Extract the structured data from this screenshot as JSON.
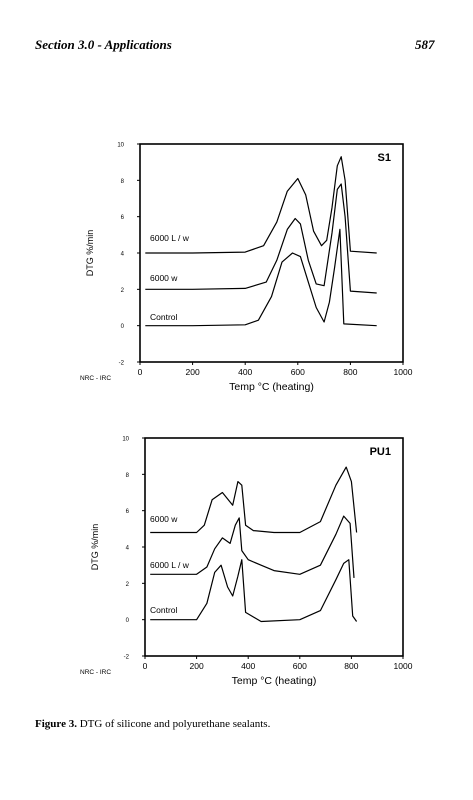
{
  "page": {
    "header_section": "Section 3.0 - Applications",
    "page_number": "587",
    "caption_label": "Figure 3.",
    "caption_text": "DTG of silicone and polyurethane sealants."
  },
  "chart_data": [
    {
      "type": "line",
      "title": "S1",
      "xlabel": "Temp °C  (heating)",
      "ylabel": "DTG   %/min",
      "source_label": "NRC - IRC",
      "xlim": [
        0,
        1000
      ],
      "ylim": [
        -2,
        10
      ],
      "xticks": [
        0,
        200,
        400,
        600,
        800,
        1000
      ],
      "yticks": [
        -2,
        0,
        2,
        4,
        6,
        8,
        10
      ],
      "series": [
        {
          "name": "6000 L / w",
          "x": [
            20,
            200,
            400,
            470,
            520,
            560,
            600,
            630,
            660,
            690,
            710,
            730,
            750,
            765,
            780,
            800,
            900
          ],
          "y": [
            4.0,
            4.0,
            4.05,
            4.4,
            5.7,
            7.4,
            8.1,
            7.2,
            5.2,
            4.4,
            4.7,
            6.5,
            8.8,
            9.3,
            8.0,
            4.1,
            4.0
          ]
        },
        {
          "name": "6000 w",
          "x": [
            20,
            200,
            400,
            480,
            520,
            560,
            590,
            610,
            640,
            670,
            700,
            730,
            750,
            765,
            780,
            800,
            900
          ],
          "y": [
            2.0,
            2.0,
            2.05,
            2.4,
            3.6,
            5.3,
            5.9,
            5.6,
            3.6,
            2.3,
            2.2,
            5.1,
            7.5,
            7.8,
            6.0,
            1.9,
            1.8
          ]
        },
        {
          "name": "Control",
          "x": [
            20,
            200,
            400,
            450,
            500,
            540,
            580,
            610,
            640,
            670,
            700,
            720,
            740,
            760,
            775,
            900
          ],
          "y": [
            0.0,
            0.0,
            0.05,
            0.3,
            1.6,
            3.5,
            4.0,
            3.8,
            2.4,
            1.0,
            0.2,
            1.3,
            3.2,
            5.3,
            0.1,
            0.0
          ]
        }
      ]
    },
    {
      "type": "line",
      "title": "PU1",
      "xlabel": "Temp °C  (heating)",
      "ylabel": "DTG   %/min",
      "source_label": "NRC - IRC",
      "xlim": [
        0,
        1000
      ],
      "ylim": [
        -2,
        10
      ],
      "xticks": [
        0,
        200,
        400,
        600,
        800,
        1000
      ],
      "yticks": [
        -2,
        0,
        2,
        4,
        6,
        8,
        10
      ],
      "series": [
        {
          "name": "6000 w",
          "x": [
            20,
            200,
            230,
            260,
            300,
            340,
            360,
            375,
            390,
            420,
            500,
            600,
            680,
            740,
            780,
            800,
            820
          ],
          "y": [
            4.8,
            4.8,
            5.2,
            6.6,
            7.0,
            6.3,
            7.6,
            7.4,
            5.2,
            4.9,
            4.8,
            4.8,
            5.4,
            7.4,
            8.4,
            7.6,
            4.8
          ]
        },
        {
          "name": "6000 L / w",
          "x": [
            20,
            200,
            240,
            270,
            300,
            330,
            350,
            365,
            375,
            400,
            450,
            500,
            600,
            680,
            740,
            770,
            795,
            810
          ],
          "y": [
            2.5,
            2.5,
            2.9,
            3.9,
            4.5,
            4.2,
            5.2,
            5.6,
            3.8,
            3.3,
            3.0,
            2.7,
            2.5,
            3.0,
            4.7,
            5.7,
            5.3,
            2.3
          ]
        },
        {
          "name": "Control",
          "x": [
            20,
            200,
            240,
            270,
            295,
            320,
            340,
            360,
            375,
            390,
            450,
            600,
            680,
            740,
            770,
            790,
            805,
            820
          ],
          "y": [
            0.0,
            0.0,
            0.9,
            2.6,
            3.0,
            1.8,
            1.3,
            2.4,
            3.3,
            0.4,
            -0.1,
            0.0,
            0.5,
            2.2,
            3.1,
            3.3,
            0.2,
            -0.1
          ]
        }
      ]
    }
  ]
}
